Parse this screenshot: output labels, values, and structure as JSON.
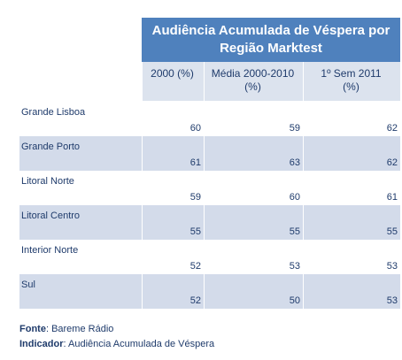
{
  "chart_data": {
    "type": "table",
    "title_line1": "Audiência Acumulada de Véspera por",
    "title_line2": "Região Marktest",
    "columns": [
      {
        "line1": "2000 (%)",
        "line2": ""
      },
      {
        "line1": "Média 2000-2010",
        "line2": "(%)"
      },
      {
        "line1": "1º Sem 2011",
        "line2": "(%)"
      }
    ],
    "rows": [
      {
        "label": "Grande Lisboa",
        "values": [
          "60",
          "59",
          "62"
        ]
      },
      {
        "label": "Grande Porto",
        "values": [
          "61",
          "63",
          "62"
        ]
      },
      {
        "label": "Litoral Norte",
        "values": [
          "59",
          "60",
          "61"
        ]
      },
      {
        "label": "Litoral Centro",
        "values": [
          "55",
          "55",
          "55"
        ]
      },
      {
        "label": "Interior Norte",
        "values": [
          "52",
          "53",
          "53"
        ]
      },
      {
        "label": "Sul",
        "values": [
          "52",
          "50",
          "53"
        ]
      }
    ]
  },
  "footer": {
    "fonte_label": "Fonte",
    "fonte_value": ": Bareme Rádio",
    "indicador_label": "Indicador",
    "indicador_value": ": Audiência Acumulada de Véspera"
  }
}
